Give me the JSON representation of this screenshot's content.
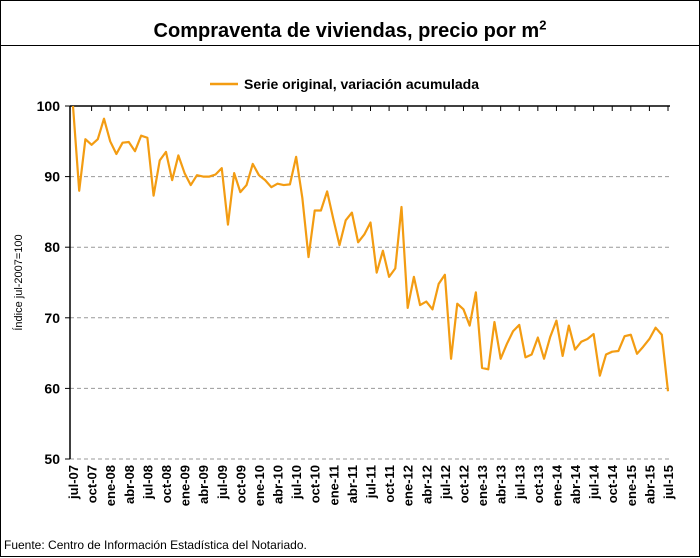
{
  "chart_data": {
    "type": "line",
    "title": "Compraventa de viviendas, precio por m",
    "title_superscript": "2",
    "ylabel": "Índice jul-2007=100",
    "xlabel": "",
    "ylim": [
      50,
      100
    ],
    "yticks": [
      50,
      60,
      70,
      80,
      90,
      100
    ],
    "grid": "horizontal dashed",
    "legend_position": "top-center",
    "x_start": "jul-07",
    "x_frequency": "monthly",
    "x_tick_labels": [
      "jul-07",
      "oct-07",
      "ene-08",
      "abr-08",
      "jul-08",
      "oct-08",
      "ene-09",
      "abr-09",
      "jul-09",
      "oct-09",
      "ene-10",
      "abr-10",
      "jul-10",
      "oct-10",
      "ene-11",
      "abr-11",
      "jul-11",
      "oct-11",
      "ene-12",
      "abr-12",
      "jul-12",
      "oct-12",
      "ene-13",
      "abr-13",
      "jul-13",
      "oct-13",
      "ene-14",
      "abr-14",
      "jul-14",
      "oct-14",
      "ene-15",
      "abr-15",
      "jul-15"
    ],
    "series": [
      {
        "name": "Serie original, variación acumulada",
        "color": "#f39c12",
        "values": [
          100,
          88,
          95.3,
          94.5,
          95.3,
          98.2,
          95,
          93.2,
          94.8,
          94.9,
          93.6,
          95.8,
          95.5,
          87.3,
          92.3,
          93.5,
          89.5,
          93,
          90.5,
          88.8,
          90.2,
          90,
          90,
          90.3,
          91.2,
          83.2,
          90.5,
          87.8,
          88.8,
          91.8,
          90.2,
          89.5,
          88.5,
          89,
          88.8,
          88.9,
          92.8,
          87,
          78.6,
          85.2,
          85.2,
          87.9,
          84,
          80.3,
          83.8,
          84.9,
          80.7,
          81.8,
          83.5,
          76.4,
          79.5,
          75.8,
          77,
          85.7,
          71.4,
          75.8,
          71.8,
          72.3,
          71.2,
          74.8,
          76.1,
          64.2,
          72,
          71.2,
          68.9,
          73.6,
          62.9,
          62.7,
          69.4,
          64.2,
          66.3,
          68.1,
          69,
          64.4,
          64.8,
          67.2,
          64.2,
          67.3,
          69.6,
          64.6,
          68.9,
          65.5,
          66.6,
          67,
          67.7,
          61.8,
          64.8,
          65.2,
          65.3,
          67.4,
          67.6,
          64.9,
          65.9,
          67,
          68.6,
          67.6,
          59.6
        ]
      }
    ],
    "source": "Fuente: Centro de Información Estadística del Notariado."
  }
}
